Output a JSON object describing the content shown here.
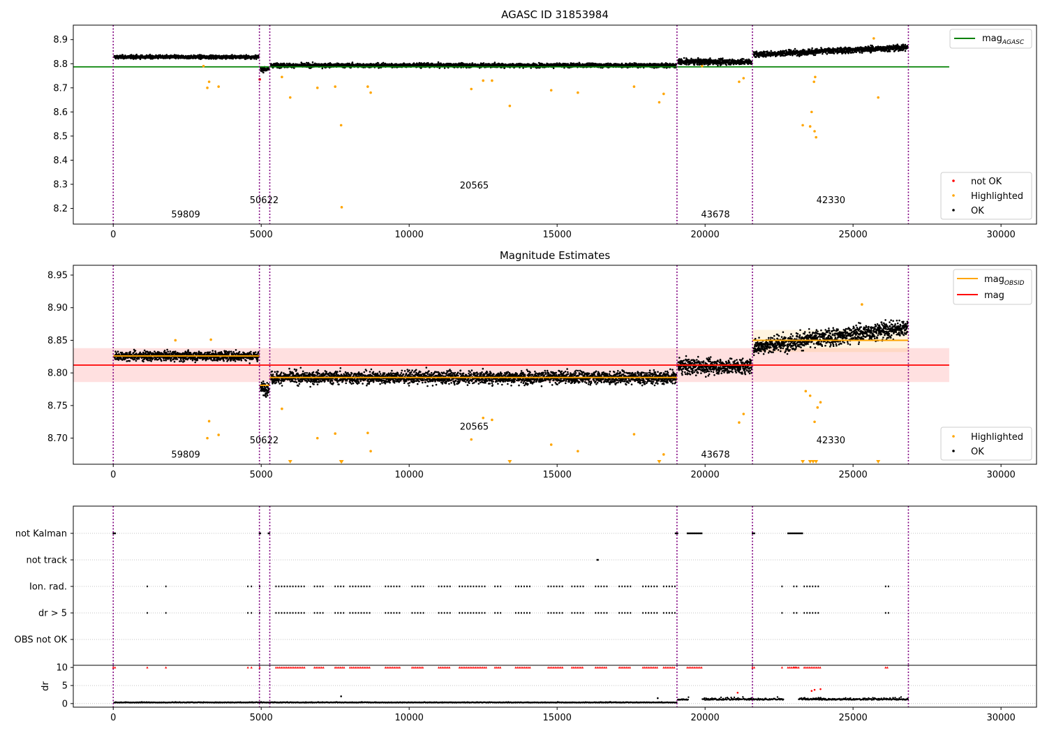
{
  "figure": {
    "obsid_boundaries": [
      0,
      4940,
      5290,
      19050,
      21600,
      26870
    ],
    "obsid_labels": [
      {
        "obsid": "59809",
        "x": 2450
      },
      {
        "obsid": "50622",
        "x": 5100
      },
      {
        "obsid": "20565",
        "x": 12200
      },
      {
        "obsid": "43678",
        "x": 20350
      },
      {
        "obsid": "42330",
        "x": 24250
      }
    ]
  },
  "chart_data": [
    {
      "type": "scatter",
      "title": "AGASC ID 31853984",
      "xlim": [
        -1350,
        31200
      ],
      "ylim": [
        8.135,
        8.96
      ],
      "xticks": [
        0,
        5000,
        10000,
        15000,
        20000,
        25000,
        30000
      ],
      "yticks": [
        8.2,
        8.3,
        8.4,
        8.5,
        8.6,
        8.7,
        8.8,
        8.9
      ],
      "grid": false,
      "legend_upper": {
        "entries": [
          {
            "label": "mag",
            "subscript": "AGASC",
            "color": "#008000"
          }
        ],
        "position": "top-right"
      },
      "legend_lower": {
        "entries": [
          {
            "label": "not OK",
            "color": "#ff0000"
          },
          {
            "label": "Highlighted",
            "color": "#ffa500"
          },
          {
            "label": "OK",
            "color": "#000000"
          }
        ],
        "position": "bottom-right"
      },
      "reference_line": {
        "name": "mag_AGASC",
        "y": 8.787,
        "x_range": [
          -1350,
          28250
        ],
        "color": "#008000"
      },
      "obsid_label_y": [
        8.175,
        8.235,
        8.295,
        8.175,
        8.235
      ],
      "segments": [
        {
          "obsid": "59809",
          "x_range": [
            0,
            4940
          ],
          "mean": 8.828,
          "spread": 0.006
        },
        {
          "obsid": "50622",
          "x_range": [
            4940,
            5290
          ],
          "mean": 8.778,
          "spread": 0.008
        },
        {
          "obsid": "20565",
          "x_range": [
            5290,
            19050
          ],
          "mean": 8.793,
          "spread": 0.007
        },
        {
          "obsid": "43678",
          "x_range": [
            19050,
            21600
          ],
          "mean": 8.808,
          "spread": 0.01
        },
        {
          "obsid": "42330",
          "x_range": [
            21600,
            26870
          ],
          "mean": 8.85,
          "spread": 0.01
        }
      ],
      "highlighted_points": [
        [
          3180,
          8.7
        ],
        [
          3240,
          8.725
        ],
        [
          3560,
          8.705
        ],
        [
          3050,
          8.79
        ],
        [
          5980,
          8.66
        ],
        [
          5700,
          8.745
        ],
        [
          6900,
          8.7
        ],
        [
          7700,
          8.545
        ],
        [
          7720,
          8.205
        ],
        [
          7500,
          8.705
        ],
        [
          8600,
          8.705
        ],
        [
          8700,
          8.68
        ],
        [
          12100,
          8.695
        ],
        [
          12500,
          8.73
        ],
        [
          12800,
          8.73
        ],
        [
          13400,
          8.625
        ],
        [
          14800,
          8.69
        ],
        [
          15700,
          8.68
        ],
        [
          17600,
          8.705
        ],
        [
          18450,
          8.64
        ],
        [
          18600,
          8.675
        ],
        [
          19900,
          8.79
        ],
        [
          21150,
          8.725
        ],
        [
          21300,
          8.74
        ],
        [
          23300,
          8.545
        ],
        [
          23550,
          8.54
        ],
        [
          23600,
          8.6
        ],
        [
          23700,
          8.52
        ],
        [
          23750,
          8.495
        ],
        [
          23680,
          8.725
        ],
        [
          23720,
          8.745
        ],
        [
          25850,
          8.66
        ],
        [
          25700,
          8.905
        ]
      ],
      "not_ok_points": [
        [
          4950,
          8.735
        ]
      ]
    },
    {
      "type": "scatter",
      "title": "Magnitude Estimates",
      "xlim": [
        -1350,
        31200
      ],
      "ylim": [
        8.66,
        8.965
      ],
      "xticks": [
        0,
        5000,
        10000,
        15000,
        20000,
        25000,
        30000
      ],
      "yticks": [
        8.7,
        8.75,
        8.8,
        8.85,
        8.9,
        8.95
      ],
      "grid": false,
      "legend_upper": {
        "entries": [
          {
            "label": "mag",
            "subscript": "OBSID",
            "color": "#ffa500"
          },
          {
            "label": "mag",
            "subscript": "",
            "color": "#ff0000"
          }
        ],
        "position": "top-right"
      },
      "legend_lower": {
        "entries": [
          {
            "label": "Highlighted",
            "color": "#ffa500"
          },
          {
            "label": "OK",
            "color": "#000000"
          }
        ],
        "position": "bottom-right"
      },
      "mag_line": {
        "y": 8.812,
        "band": [
          8.786,
          8.838
        ],
        "x_range": [
          -1350,
          28250
        ],
        "color": "#ff0000"
      },
      "obsid_label_y": [
        8.675,
        8.697,
        8.718,
        8.675,
        8.697
      ],
      "obsid_means": [
        {
          "obsid": "59809",
          "x_range": [
            0,
            4940
          ],
          "mean": 8.826
        },
        {
          "obsid": "50622",
          "x_range": [
            4940,
            5290
          ],
          "mean": 8.781
        },
        {
          "obsid": "20565",
          "x_range": [
            5290,
            19050
          ],
          "mean": 8.793
        },
        {
          "obsid": "43678",
          "x_range": [
            19050,
            21600
          ],
          "mean": 8.812
        },
        {
          "obsid": "42330",
          "x_range": [
            21600,
            26870
          ],
          "mean": 8.85
        }
      ],
      "segments": [
        {
          "obsid": "59809",
          "x_range": [
            0,
            4940
          ],
          "mean": 8.826,
          "spread": 0.006
        },
        {
          "obsid": "50622",
          "x_range": [
            4940,
            5290
          ],
          "mean": 8.776,
          "spread": 0.008
        },
        {
          "obsid": "20565",
          "x_range": [
            5290,
            19050
          ],
          "mean": 8.793,
          "spread": 0.008
        },
        {
          "obsid": "43678",
          "x_range": [
            19050,
            21600
          ],
          "mean": 8.81,
          "spread": 0.01
        },
        {
          "obsid": "42330",
          "x_range": [
            21600,
            26870
          ],
          "mean": 8.852,
          "spread": 0.011
        }
      ],
      "highlighted_points": [
        [
          3180,
          8.7
        ],
        [
          3240,
          8.726
        ],
        [
          3560,
          8.705
        ],
        [
          5700,
          8.745
        ],
        [
          6900,
          8.7
        ],
        [
          7500,
          8.707
        ],
        [
          8600,
          8.708
        ],
        [
          8700,
          8.68
        ],
        [
          12100,
          8.698
        ],
        [
          12500,
          8.731
        ],
        [
          12800,
          8.728
        ],
        [
          14800,
          8.69
        ],
        [
          15700,
          8.68
        ],
        [
          17600,
          8.706
        ],
        [
          18600,
          8.675
        ],
        [
          21150,
          8.724
        ],
        [
          21300,
          8.737
        ],
        [
          23400,
          8.772
        ],
        [
          23550,
          8.765
        ],
        [
          23700,
          8.725
        ],
        [
          23800,
          8.747
        ],
        [
          23900,
          8.755
        ],
        [
          25300,
          8.905
        ],
        [
          2100,
          8.85
        ],
        [
          3300,
          8.851
        ]
      ],
      "clipped_points_x": [
        5980,
        7700,
        7720,
        13400,
        18450,
        23300,
        23550,
        23650,
        23750,
        25850
      ]
    },
    {
      "type": "scatter",
      "title": "",
      "xlim": [
        -1350,
        31200
      ],
      "xticks": [
        0,
        5000,
        10000,
        15000,
        20000,
        25000,
        30000
      ],
      "flag_rows": [
        "not Kalman",
        "not track",
        "Ion. rad.",
        "dr > 5",
        "OBS not OK"
      ],
      "flags": {
        "not Kalman": [
          [
            0,
            100
          ],
          [
            4940,
            5000
          ],
          [
            5240,
            5300
          ],
          [
            19000,
            19100
          ],
          [
            19400,
            19900
          ],
          [
            21600,
            21680
          ],
          [
            22800,
            23300
          ]
        ],
        "not track": [
          [
            16350,
            16400
          ]
        ],
        "Ion. rad.": [
          [
            1150,
            1150
          ],
          [
            1780,
            1780
          ],
          [
            4550,
            4560
          ],
          [
            4670,
            4680
          ],
          [
            4950,
            4960
          ],
          [
            5500,
            6500
          ],
          [
            6800,
            7100
          ],
          [
            7500,
            7850
          ],
          [
            8000,
            8700
          ],
          [
            9200,
            9700
          ],
          [
            10100,
            10500
          ],
          [
            11000,
            11400
          ],
          [
            11700,
            12600
          ],
          [
            12900,
            13100
          ],
          [
            13600,
            14100
          ],
          [
            14700,
            15200
          ],
          [
            15500,
            15900
          ],
          [
            16300,
            16700
          ],
          [
            17100,
            17500
          ],
          [
            17900,
            18400
          ],
          [
            18600,
            19000
          ],
          [
            22600,
            22650
          ],
          [
            23000,
            23100
          ],
          [
            23350,
            23900
          ],
          [
            26100,
            26200
          ]
        ],
        "dr > 5": [
          [
            1150,
            1150
          ],
          [
            1780,
            1780
          ],
          [
            4550,
            4560
          ],
          [
            4670,
            4680
          ],
          [
            4950,
            4960
          ],
          [
            5500,
            6500
          ],
          [
            6800,
            7100
          ],
          [
            7500,
            7850
          ],
          [
            8000,
            8700
          ],
          [
            9200,
            9700
          ],
          [
            10100,
            10500
          ],
          [
            11000,
            11400
          ],
          [
            11700,
            12600
          ],
          [
            12900,
            13100
          ],
          [
            13600,
            14100
          ],
          [
            14700,
            15200
          ],
          [
            15500,
            15900
          ],
          [
            16300,
            16700
          ],
          [
            17100,
            17500
          ],
          [
            17900,
            18400
          ],
          [
            18600,
            19000
          ],
          [
            22600,
            22650
          ],
          [
            23000,
            23100
          ],
          [
            23350,
            23900
          ],
          [
            26100,
            26200
          ]
        ],
        "OBS not OK": []
      },
      "dr": {
        "ylabel": "dr",
        "yticks": [
          0,
          5,
          10
        ],
        "ylim": [
          -1,
          10.6
        ],
        "clip_value": 10,
        "baseline_segments": [
          {
            "x_range": [
              0,
              19050
            ],
            "mean": 0.25
          },
          {
            "x_range": [
              19050,
              26870
            ],
            "mean": 1.0
          }
        ],
        "outliers": [
          [
            7700,
            2.0
          ],
          [
            18400,
            1.5
          ],
          [
            21100,
            3.0
          ],
          [
            23700,
            3.8
          ],
          [
            23900,
            4.0
          ],
          [
            23600,
            3.5
          ]
        ]
      }
    }
  ]
}
